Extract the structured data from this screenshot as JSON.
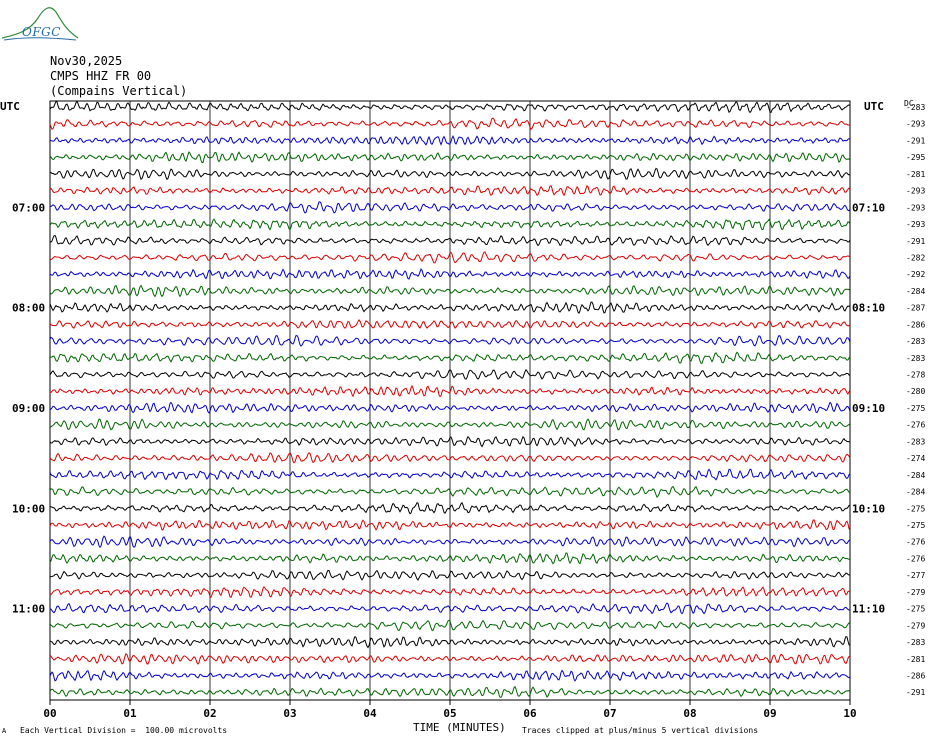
{
  "header": {
    "logo_text": "OFGC",
    "date": "Nov30,2025",
    "station": "CMPS HHZ FR 00",
    "site": "(Compains Vertical)"
  },
  "chart_data": {
    "type": "line",
    "title": "",
    "xlabel": "TIME (MINUTES)",
    "x_ticks": [
      "00",
      "01",
      "02",
      "03",
      "04",
      "05",
      "06",
      "07",
      "08",
      "09",
      "10"
    ],
    "xlim": [
      0,
      10
    ],
    "left_axis_label": "UTC",
    "right_axis_label": "UTC",
    "dc_header": "DC",
    "left_time_labels": [
      "07:00",
      "08:00",
      "09:00",
      "10:00",
      "11:00"
    ],
    "right_time_labels": [
      "07:10",
      "08:10",
      "09:10",
      "10:10",
      "11:10"
    ],
    "left_label_rows": [
      6,
      12,
      18,
      24,
      30
    ],
    "trace_colors": [
      "#000000",
      "#dd0000",
      "#0000cc",
      "#006600"
    ],
    "dc_offsets": [
      "-283",
      "-293",
      "-291",
      "-295",
      "-281",
      "-293",
      "-293",
      "-293",
      "-291",
      "-282",
      "-292",
      "-284",
      "-287",
      "-286",
      "-283",
      "-283",
      "-278",
      "-280",
      "-275",
      "-276",
      "-283",
      "-274",
      "-284",
      "-284",
      "-275",
      "-275",
      "-276",
      "-276",
      "-277",
      "-279",
      "-275",
      "-279",
      "-283",
      "-281",
      "-286",
      "-291"
    ],
    "grid": true
  },
  "footer": {
    "scale_note": "Each Vertical Division =  100.00 microvolts",
    "clip_note": "Traces clipped at plus/minus 5 vertical divisions",
    "corner_mark": "A"
  }
}
